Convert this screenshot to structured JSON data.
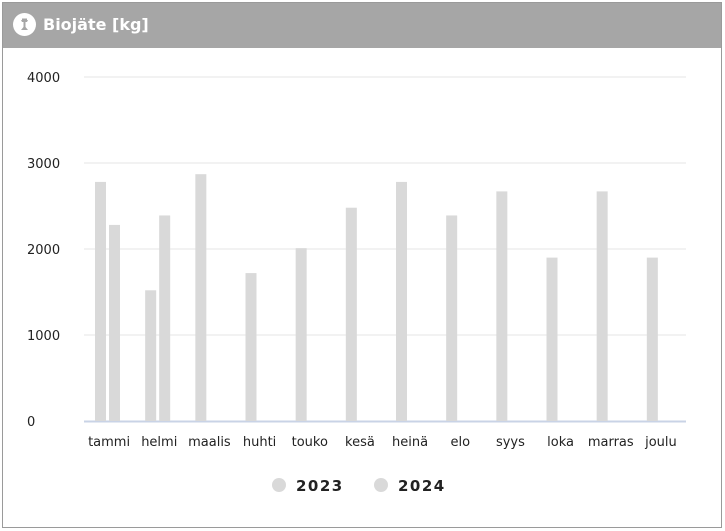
{
  "header": {
    "title": "Biojäte [kg]",
    "icon": "trash-bin-icon",
    "background": "#a6a6a6"
  },
  "chart_data": {
    "type": "bar",
    "title": "Biojäte [kg]",
    "xlabel": "",
    "ylabel": "",
    "categories": [
      "tammi",
      "helmi",
      "maalis",
      "huhti",
      "touko",
      "kesä",
      "heinä",
      "elo",
      "syys",
      "loka",
      "marras",
      "joulu"
    ],
    "series": [
      {
        "name": "2023",
        "color": "#d9d9d9",
        "values": [
          2780,
          1520,
          2870,
          1720,
          2010,
          2480,
          2780,
          2390,
          2670,
          1900,
          2670,
          1900
        ]
      },
      {
        "name": "2024",
        "color": "#d9d9d9",
        "values": [
          2280,
          2390,
          null,
          null,
          null,
          null,
          null,
          null,
          null,
          null,
          null,
          null
        ]
      }
    ],
    "ylim": [
      0,
      4000
    ],
    "yticks": [
      0,
      1000,
      2000,
      3000,
      4000
    ],
    "grid": true,
    "legend": "bottom-center"
  }
}
